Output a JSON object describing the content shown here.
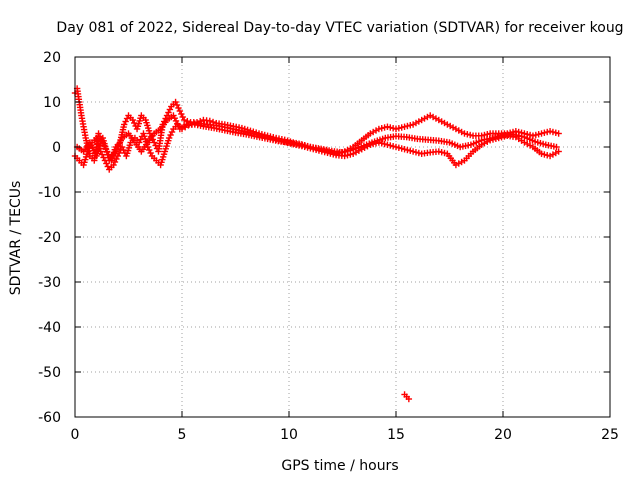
{
  "chart_data": {
    "type": "scatter",
    "title": "Day 081 of 2022, Sidereal Day-to-day VTEC variation (SDTVAR) for receiver koug",
    "xlabel": "GPS time / hours",
    "ylabel": "SDTVAR / TECUs",
    "xlim": [
      0,
      25
    ],
    "ylim": [
      -60,
      20
    ],
    "xticks": [
      0,
      5,
      10,
      15,
      20,
      25
    ],
    "yticks": [
      -60,
      -50,
      -40,
      -30,
      -20,
      -10,
      0,
      10,
      20
    ],
    "grid": true,
    "marker": "+",
    "color": "#ff0000",
    "series": [
      {
        "name": "track-1",
        "x": [
          0.0,
          0.1,
          0.2,
          0.3,
          0.5,
          0.7,
          0.9,
          1.1,
          1.3,
          1.5,
          1.7,
          1.9,
          2.1,
          2.3,
          2.5,
          2.7,
          2.9,
          3.1,
          3.3,
          3.5,
          3.7,
          3.9,
          4.1,
          4.3,
          4.5,
          4.7,
          4.9,
          5.1,
          5.4,
          5.7,
          6.0,
          6.3,
          6.6,
          7.0,
          7.4,
          7.8,
          8.2,
          8.6,
          9.0,
          9.4,
          9.8,
          10.2,
          10.6,
          11.0,
          11.4,
          11.8,
          12.2,
          12.6,
          13.0,
          13.4,
          13.8,
          14.2,
          14.6,
          15.0,
          15.4,
          15.8,
          16.2,
          16.6,
          17.0,
          17.4,
          17.8,
          18.2,
          18.6,
          19.0,
          19.4,
          19.8,
          20.2,
          20.6,
          21.0,
          21.4,
          21.8,
          22.2,
          22.6
        ],
        "y": [
          12,
          13,
          10,
          7,
          2,
          -2,
          -3,
          3,
          1,
          -1,
          -3,
          0,
          1,
          5,
          7,
          6,
          4,
          7,
          6,
          3,
          1,
          -1,
          5,
          7,
          9,
          10,
          8,
          6,
          5.5,
          5.5,
          6,
          5.8,
          5.3,
          5,
          4.6,
          4.2,
          3.6,
          3,
          2.5,
          2,
          1.6,
          1,
          0.6,
          0,
          -0.5,
          -1,
          -1.5,
          -1,
          0,
          1.5,
          3,
          4,
          4.5,
          4,
          4.5,
          5,
          6,
          7,
          6,
          5,
          4,
          3,
          2.5,
          2.5,
          3,
          3,
          3,
          3.5,
          3,
          2.5,
          3,
          3.5,
          3
        ]
      },
      {
        "name": "track-2",
        "x": [
          0.0,
          0.2,
          0.4,
          0.6,
          0.8,
          1.0,
          1.2,
          1.4,
          1.6,
          1.8,
          2.0,
          2.2,
          2.4,
          2.6,
          2.8,
          3.0,
          3.2,
          3.4,
          3.6,
          3.8,
          4.0,
          4.2,
          4.4,
          4.6,
          4.8,
          5.0,
          5.3,
          5.6,
          5.9,
          6.2,
          6.6,
          7.0,
          7.4,
          7.8,
          8.2,
          8.6,
          9.0,
          9.4,
          9.8,
          10.2,
          10.6,
          11.0,
          11.4,
          11.8,
          12.2,
          12.6,
          13.0,
          13.4,
          13.8,
          14.2,
          14.6,
          15.0,
          15.4,
          15.8,
          16.2,
          16.6,
          17.0,
          17.4,
          17.8,
          18.2,
          18.6,
          19.0,
          19.4,
          19.8,
          20.2,
          20.6,
          21.0,
          21.4,
          21.8,
          22.2,
          22.6
        ],
        "y": [
          -2,
          -3,
          -4,
          -1,
          1,
          2,
          -1,
          -3,
          -5,
          -4,
          -2,
          0,
          -2,
          1,
          2,
          1,
          3,
          0,
          -2,
          -3,
          -4,
          -1,
          2,
          4,
          5,
          4,
          4.8,
          5.2,
          5.2,
          5,
          4.8,
          4.4,
          4,
          3.6,
          3.1,
          2.6,
          2.1,
          1.6,
          1.1,
          0.6,
          0.2,
          -0.3,
          -0.8,
          -1.3,
          -1.8,
          -2,
          -1.5,
          -0.5,
          0.5,
          1,
          0.5,
          0,
          -0.5,
          -1,
          -1.5,
          -1.2,
          -1,
          -1.5,
          -4,
          -3,
          -1,
          0.5,
          1.5,
          2,
          2.5,
          2.2,
          1,
          0,
          -1.5,
          -2,
          -1
        ]
      },
      {
        "name": "track-3",
        "x": [
          0.1,
          0.4,
          0.7,
          1.0,
          1.3,
          1.6,
          1.9,
          2.2,
          2.5,
          2.8,
          3.1,
          3.4,
          3.7,
          4.0,
          4.3,
          4.6,
          4.9,
          5.2,
          5.6,
          6.0,
          6.5,
          7.0,
          7.5,
          8.0,
          8.5,
          9.0,
          9.5,
          10.0,
          10.5,
          11.0,
          11.5,
          12.0,
          12.5,
          13.0,
          13.5,
          14.0,
          14.5,
          15.0,
          15.5,
          16.0,
          16.5,
          17.0,
          17.5,
          18.0,
          18.5,
          19.0,
          19.5,
          20.0,
          20.5,
          21.0,
          21.5,
          22.0,
          22.5
        ],
        "y": [
          0,
          -1,
          1,
          -2,
          2,
          -3,
          -1,
          2,
          3,
          1,
          -1,
          1,
          3,
          4,
          6,
          7,
          4,
          5,
          5,
          4.6,
          4.2,
          3.7,
          3.2,
          2.8,
          2.3,
          1.8,
          1.3,
          1,
          0.5,
          0,
          -0.4,
          -0.9,
          -1.2,
          -0.6,
          0.3,
          1.2,
          2,
          2.4,
          2.2,
          1.8,
          1.6,
          1.4,
          1,
          0,
          0.5,
          1.5,
          2,
          2.6,
          2.8,
          2.2,
          1.2,
          0.5,
          0
        ]
      },
      {
        "name": "outlier",
        "x": [
          15.4,
          15.5,
          15.6
        ],
        "y": [
          -55,
          -55.5,
          -56
        ]
      }
    ]
  }
}
